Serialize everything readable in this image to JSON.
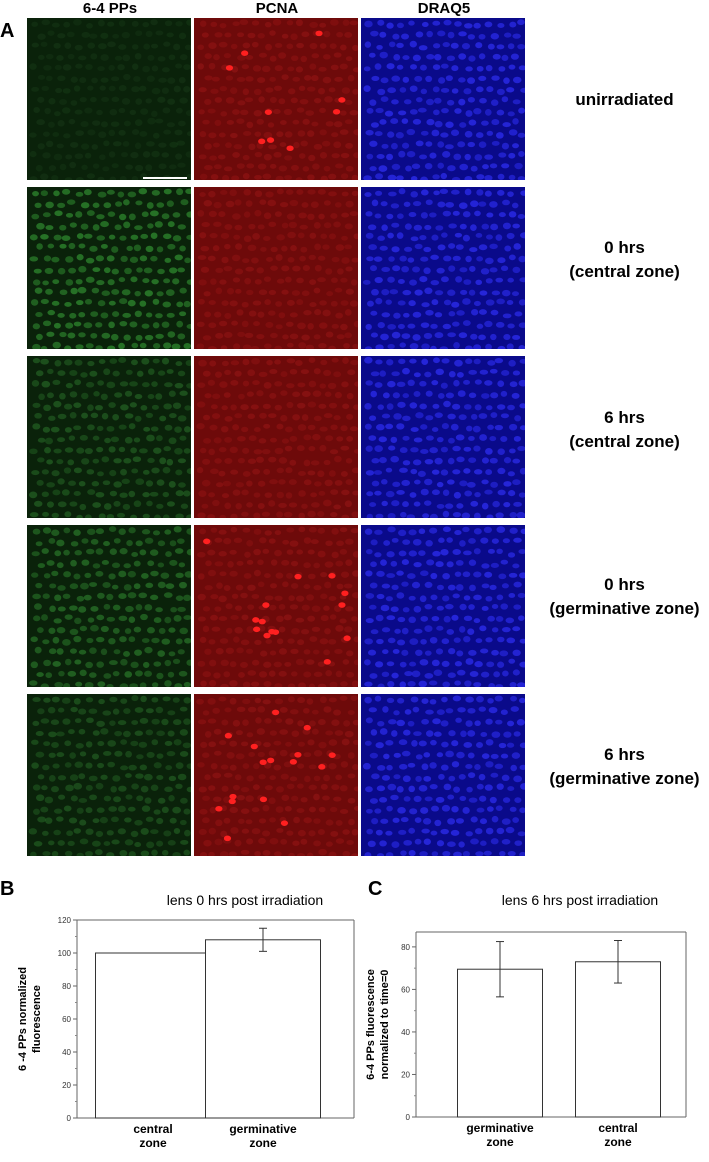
{
  "panel_a": {
    "letter": "A",
    "columns": [
      "6-4 PPs",
      "PCNA",
      "DRAQ5"
    ],
    "column_colors": [
      "#0b2a0b",
      "#7a0a0a",
      "#0a0a9a"
    ],
    "rows": [
      {
        "label_line1": "unirradiated",
        "label_line2": "",
        "green_level": 0.15,
        "red_spots": 9
      },
      {
        "label_line1": "0 hrs",
        "label_line2": "(central zone)",
        "green_level": 0.9,
        "red_spots": 0
      },
      {
        "label_line1": "6 hrs",
        "label_line2": "(central zone)",
        "green_level": 0.6,
        "red_spots": 0
      },
      {
        "label_line1": "0 hrs",
        "label_line2": "(germinative zone)",
        "green_level": 0.75,
        "red_spots": 14
      },
      {
        "label_line1": "6 hrs",
        "label_line2": "(germinative zone)",
        "green_level": 0.55,
        "red_spots": 16
      }
    ]
  },
  "panel_b": {
    "letter": "B",
    "chart_data": {
      "type": "bar",
      "title": "lens 0 hrs post irradiation",
      "ylabel_line1": "6 -4 PPs normalized",
      "ylabel_line2": "fluorescence",
      "categories": [
        [
          "central",
          "zone"
        ],
        [
          "germinative",
          "zone"
        ]
      ],
      "values": [
        100,
        108
      ],
      "errors": [
        0,
        7
      ],
      "ylim": [
        0,
        120
      ],
      "yticks": [
        0,
        20,
        40,
        60,
        80,
        100,
        120
      ]
    }
  },
  "panel_c": {
    "letter": "C",
    "chart_data": {
      "type": "bar",
      "title": "lens 6 hrs post irradiation",
      "ylabel_line1": "6-4 PPs fluorescence",
      "ylabel_line2": "normalized to time=0",
      "categories": [
        [
          "germinative",
          "zone"
        ],
        [
          "central",
          "zone"
        ]
      ],
      "values": [
        69.5,
        73
      ],
      "errors": [
        13,
        10
      ],
      "ylim": [
        0,
        87
      ],
      "yticks": [
        0,
        20,
        40,
        60,
        80
      ]
    }
  }
}
